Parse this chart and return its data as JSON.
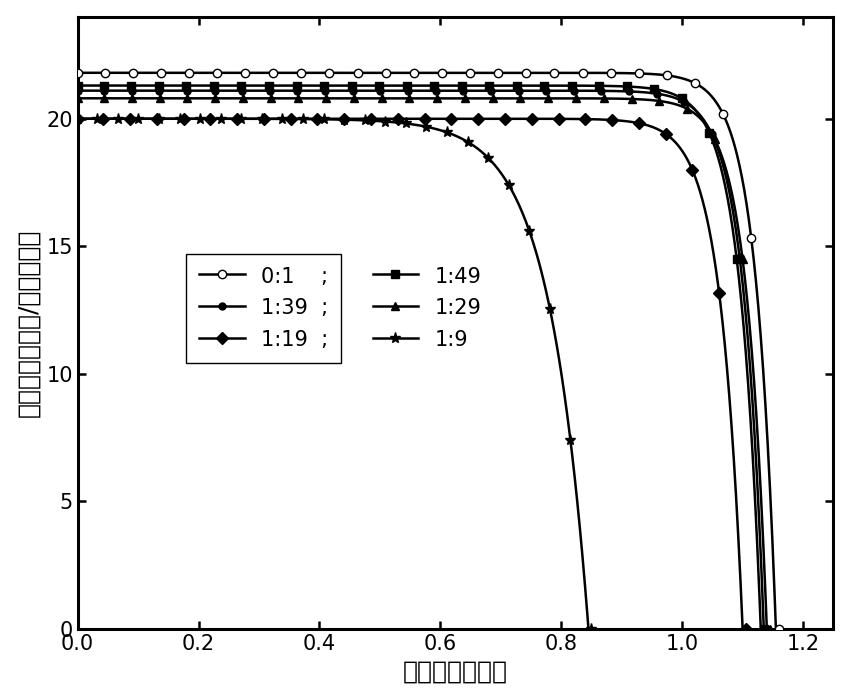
{
  "title": "",
  "xlabel": "电压　（伏特）",
  "ylabel": "电流密度（毫安/平方厘米）",
  "xlim": [
    0.0,
    1.25
  ],
  "ylim": [
    0.0,
    24
  ],
  "xticks": [
    0.0,
    0.2,
    0.4,
    0.6,
    0.8,
    1.0,
    1.2
  ],
  "yticks": [
    0,
    5,
    10,
    15,
    20
  ],
  "series": [
    {
      "label": "0:1",
      "jsc": 21.8,
      "voc": 1.155,
      "n_factor": 1.3,
      "marker": "o",
      "fillstyle": "none",
      "markersize": 6,
      "zorder": 6
    },
    {
      "label": "1:49",
      "jsc": 21.3,
      "voc": 1.13,
      "n_factor": 1.35,
      "marker": "s",
      "fillstyle": "full",
      "markersize": 6,
      "zorder": 5
    },
    {
      "label": "1:39",
      "jsc": 21.1,
      "voc": 1.135,
      "n_factor": 1.32,
      "marker": "o",
      "fillstyle": "full",
      "markersize": 5,
      "zorder": 4
    },
    {
      "label": "1:29",
      "jsc": 20.8,
      "voc": 1.14,
      "n_factor": 1.3,
      "marker": "^",
      "fillstyle": "full",
      "markersize": 6,
      "zorder": 3
    },
    {
      "label": "1:19",
      "jsc": 20.0,
      "voc": 1.1,
      "n_factor": 1.4,
      "marker": "D",
      "fillstyle": "full",
      "markersize": 6,
      "zorder": 2
    },
    {
      "label": "1:9",
      "jsc": 20.0,
      "voc": 0.845,
      "n_factor": 2.5,
      "marker": "*",
      "fillstyle": "full",
      "markersize": 8,
      "zorder": 1
    }
  ],
  "line_color": "black",
  "linewidth": 1.8,
  "n_points": 600,
  "background_color": "white",
  "font_size": 15,
  "tick_fontsize": 15,
  "label_fontsize": 18
}
